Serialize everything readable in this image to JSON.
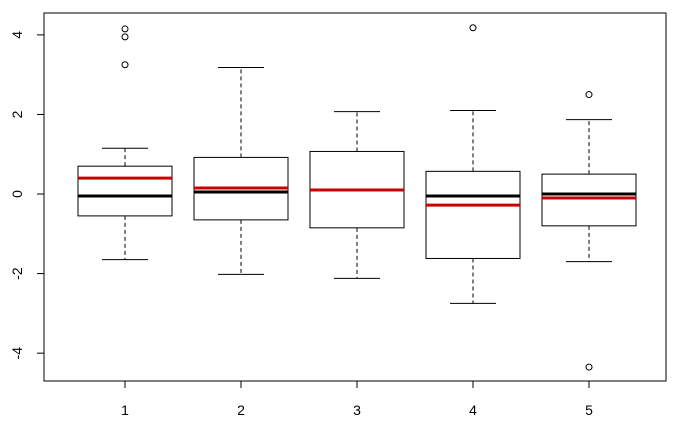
{
  "chart_data": {
    "type": "boxplot",
    "title": "",
    "xlabel": "",
    "ylabel": "",
    "ylim": [
      -4.7,
      4.55
    ],
    "x_ticks": [
      "1",
      "2",
      "3",
      "4",
      "5"
    ],
    "y_ticks": [
      "-4",
      "-2",
      "0",
      "2",
      "4"
    ],
    "grid": false,
    "legend": "none",
    "median_color": "#000000",
    "mean_color": "#cc0000",
    "boxes": [
      {
        "category": "1",
        "whisker_low": -1.65,
        "q1": -0.55,
        "median": -0.05,
        "mean": 0.4,
        "q3": 0.7,
        "whisker_high": 1.15,
        "outliers": [
          4.15,
          3.95,
          3.25
        ]
      },
      {
        "category": "2",
        "whisker_low": -2.02,
        "q1": -0.65,
        "median": 0.05,
        "mean": 0.15,
        "q3": 0.92,
        "whisker_high": 3.18,
        "outliers": []
      },
      {
        "category": "3",
        "whisker_low": -2.12,
        "q1": -0.85,
        "median": 0.1,
        "mean": 0.1,
        "q3": 1.07,
        "whisker_high": 2.07,
        "outliers": []
      },
      {
        "category": "4",
        "whisker_low": -2.75,
        "q1": -1.62,
        "median": -0.05,
        "mean": -0.28,
        "q3": 0.57,
        "whisker_high": 2.1,
        "outliers": [
          4.18
        ]
      },
      {
        "category": "5",
        "whisker_low": -1.7,
        "q1": -0.8,
        "median": 0.0,
        "mean": -0.1,
        "q3": 0.5,
        "whisker_high": 1.87,
        "outliers": [
          2.5,
          -4.35
        ]
      }
    ]
  }
}
